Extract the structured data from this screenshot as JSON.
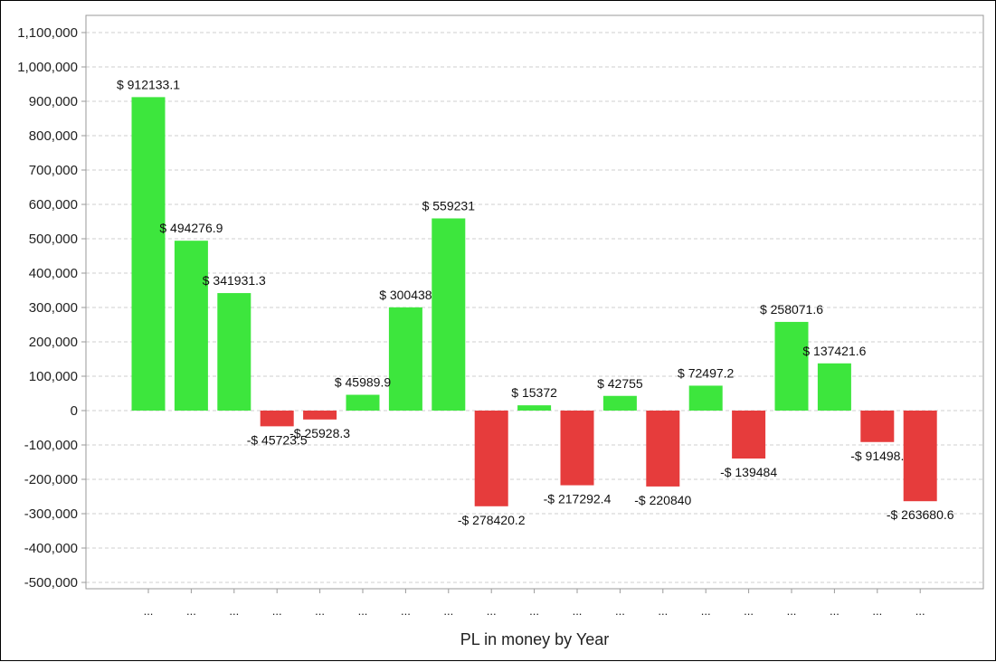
{
  "chart_data": {
    "type": "bar",
    "title": "",
    "xlabel": "PL in money by Year",
    "ylabel": "",
    "ylim": [
      -500000,
      1100000
    ],
    "yticks": [
      "1,100,000",
      "1,000,000",
      "900,000",
      "800,000",
      "700,000",
      "600,000",
      "500,000",
      "400,000",
      "300,000",
      "200,000",
      "100,000",
      "0",
      "-100,000",
      "-200,000",
      "-300,000",
      "-400,000",
      "-500,000"
    ],
    "ytick_values": [
      1100000,
      1000000,
      900000,
      800000,
      700000,
      600000,
      500000,
      400000,
      300000,
      200000,
      100000,
      0,
      -100000,
      -200000,
      -300000,
      -400000,
      -500000
    ],
    "categories": [
      "...",
      "...",
      "...",
      "...",
      "...",
      "...",
      "...",
      "...",
      "...",
      "...",
      "...",
      "...",
      "...",
      "...",
      "...",
      "...",
      "...",
      "...",
      "..."
    ],
    "values": [
      912133.1,
      494276.9,
      341931.3,
      -45723.5,
      -25928.3,
      45989.9,
      300438,
      559231,
      -278420.2,
      15372,
      -217292.4,
      42755,
      -220840,
      72497.2,
      -139484,
      258071.6,
      137421.6,
      -91498,
      -263680.6
    ],
    "data_labels": [
      "$ 912133.1",
      "$ 494276.9",
      "$ 341931.3",
      "-$ 45723.5",
      "-$ 25928.3",
      "$ 45989.9",
      "$ 300438",
      "$ 559231",
      "-$ 278420.2",
      "$ 15372",
      "-$ 217292.4",
      "$ 42755",
      "-$ 220840",
      "$ 72497.2",
      "-$ 139484",
      "$ 258071.6",
      "$ 137421.6",
      "-$ 91498.",
      "-$ 263680.6"
    ],
    "grid": true,
    "legend": "none",
    "colors": {
      "positive": "#3de63d",
      "negative": "#e63c3c",
      "grid": "#cfcfcf",
      "axis": "#9a9a9a"
    }
  }
}
